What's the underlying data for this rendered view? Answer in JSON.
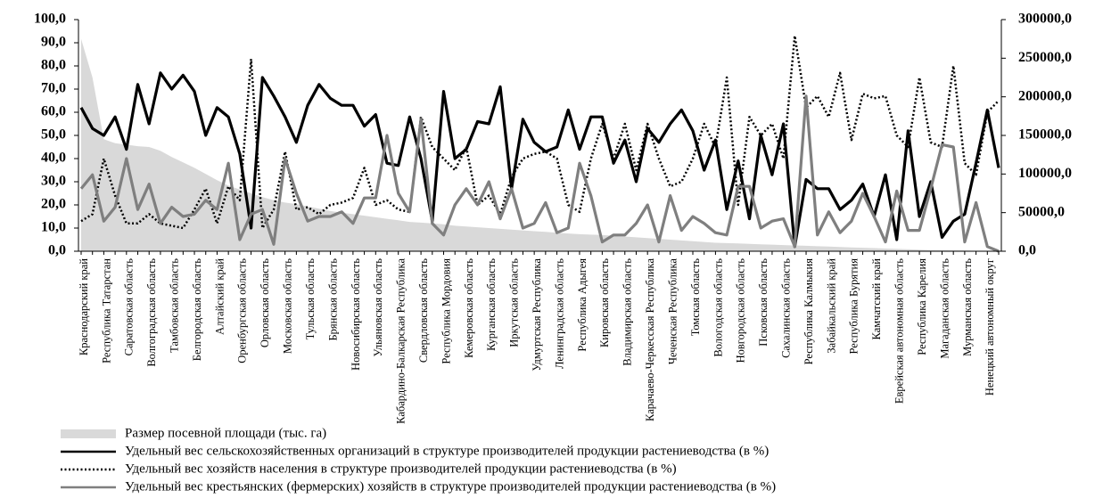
{
  "chart_data": {
    "type": "line",
    "categories": [
      "Краснодарский край",
      null,
      "Республика Татарстан",
      null,
      "Саратовская область",
      null,
      "Волгоградская область",
      null,
      "Тамбовская область",
      null,
      "Белгородская область",
      null,
      "Алтайский край",
      null,
      "Оренбургская область",
      null,
      "Орловская область",
      null,
      "Московская область",
      null,
      "Тульская область",
      null,
      "Брянская область",
      null,
      "Новосибирская область",
      null,
      "Ульяновская область",
      null,
      "Кабардино-Балкарская Республика",
      null,
      "Свердловская область",
      null,
      "Республика Мордовия",
      null,
      "Кемеровская область",
      null,
      "Курганская область",
      null,
      "Иркутская область",
      null,
      "Удмуртская Республика",
      null,
      "Ленинградская область",
      null,
      "Республика Адыгея",
      null,
      "Кировская область",
      null,
      "Владимирская область",
      null,
      "Карачаево-Черкесская Республика",
      null,
      "Чеченская Республика",
      null,
      "Томская область",
      null,
      "Вологодская область",
      null,
      "Новгородская область",
      null,
      "Псковская область",
      null,
      "Сахалинская область",
      null,
      "Республика Калмыкия",
      null,
      "Забайкальский край",
      null,
      "Республика Бурятия",
      null,
      "Камчатский край",
      null,
      "Еврейская автономная область",
      null,
      "Республика Карелия",
      null,
      "Магаданская область",
      null,
      "Мурманская область",
      null,
      "Ненецкий автономный округ",
      null
    ],
    "series": [
      {
        "name": "Размер посевной площади (тыс. га)",
        "style": "area",
        "color": "#d9d9d9",
        "axis": "y2",
        "values": [
          275000,
          225000,
          145000,
          140000,
          138000,
          136000,
          135000,
          130000,
          122000,
          115000,
          108000,
          100000,
          92000,
          85000,
          80000,
          75000,
          70000,
          66000,
          63000,
          61000,
          58000,
          55000,
          52000,
          50000,
          48000,
          46000,
          44000,
          42000,
          40000,
          38000,
          37000,
          36000,
          35000,
          33000,
          32000,
          31000,
          30000,
          29000,
          28000,
          27000,
          26000,
          25000,
          24000,
          23000,
          22000,
          21500,
          21000,
          20000,
          19000,
          18000,
          17000,
          16000,
          15000,
          14000,
          13000,
          12000,
          11000,
          10500,
          10000,
          9500,
          9000,
          8500,
          8000,
          7500,
          7000,
          6500,
          6000,
          5500,
          5000,
          4500,
          4000,
          3500,
          3000,
          2500,
          2000,
          1500,
          1200,
          1000,
          800,
          500,
          300,
          100
        ]
      },
      {
        "name": "Удельный вес сельскохозяйственных организаций в структуре производителей продукции растениеводства (в %)",
        "style": "solid",
        "color": "#000000",
        "values": [
          62,
          53,
          50,
          58,
          44,
          72,
          55,
          77,
          70,
          76,
          69,
          50,
          62,
          58,
          42,
          10,
          75,
          67,
          58,
          47,
          63,
          72,
          66,
          63,
          63,
          54,
          59,
          38,
          37,
          58,
          40,
          13,
          69,
          40,
          44,
          56,
          55,
          71,
          27,
          57,
          47,
          43,
          45,
          61,
          44,
          58,
          58,
          38,
          48,
          30,
          53,
          47,
          55,
          61,
          52,
          35,
          48,
          18,
          39,
          14,
          50,
          33,
          55,
          2,
          31,
          27,
          27,
          18,
          22,
          29,
          15,
          33,
          5,
          52,
          15,
          30,
          6,
          13,
          16,
          38,
          61,
          36
        ]
      },
      {
        "name": "Удельный вес хозяйств населения в структуре производителей продукции растениеводства (в %)",
        "style": "dotted",
        "color": "#000000",
        "values": [
          13,
          16,
          40,
          24,
          12,
          12,
          16,
          12,
          11,
          10,
          18,
          27,
          12,
          28,
          22,
          83,
          10,
          18,
          43,
          18,
          19,
          16,
          20,
          21,
          23,
          36,
          20,
          22,
          18,
          17,
          58,
          45,
          40,
          35,
          45,
          20,
          24,
          16,
          32,
          40,
          42,
          43,
          40,
          20,
          17,
          40,
          55,
          40,
          55,
          35,
          55,
          40,
          28,
          30,
          40,
          55,
          45,
          75,
          20,
          58,
          50,
          55,
          40,
          93,
          62,
          67,
          58,
          77,
          48,
          68,
          66,
          67,
          50,
          45,
          75,
          47,
          45,
          80,
          38,
          33,
          60,
          65
        ]
      },
      {
        "name": "Удельный вес крестьянских (фермерских) хозяйств в структуре производителей продукции растениеводства (в %)",
        "style": "solid",
        "color": "#7f7f7f",
        "values": [
          27,
          33,
          13,
          19,
          40,
          18,
          29,
          12,
          19,
          15,
          16,
          22,
          18,
          38,
          5,
          16,
          18,
          3,
          40,
          25,
          13,
          15,
          15,
          17,
          12,
          23,
          23,
          50,
          25,
          17,
          57,
          12,
          7,
          20,
          27,
          20,
          30,
          14,
          27,
          10,
          12,
          21,
          8,
          10,
          38,
          24,
          4,
          7,
          7,
          12,
          20,
          4,
          24,
          9,
          15,
          12,
          8,
          7,
          28,
          28,
          10,
          13,
          14,
          2,
          67,
          7,
          17,
          8,
          13,
          25,
          15,
          4,
          26,
          9,
          9,
          27,
          46,
          45,
          4,
          21,
          2,
          0
        ]
      }
    ],
    "ylim": [
      0,
      100
    ],
    "yticks": [
      {
        "value": 0,
        "label": "0,0"
      },
      {
        "value": 10,
        "label": "10,0"
      },
      {
        "value": 20,
        "label": "20,0"
      },
      {
        "value": 30,
        "label": "30,0"
      },
      {
        "value": 40,
        "label": "40,0"
      },
      {
        "value": 50,
        "label": "50,0"
      },
      {
        "value": 60,
        "label": "60,0"
      },
      {
        "value": 70,
        "label": "70,0"
      },
      {
        "value": 80,
        "label": "80,0"
      },
      {
        "value": 90,
        "label": "90,0"
      },
      {
        "value": 100,
        "label": "100,0"
      }
    ],
    "y2lim": [
      0,
      300000
    ],
    "y2ticks": [
      {
        "value": 0,
        "label": "0,0"
      },
      {
        "value": 50000,
        "label": "50000,0"
      },
      {
        "value": 100000,
        "label": "100000,0"
      },
      {
        "value": 150000,
        "label": "150000,0"
      },
      {
        "value": 200000,
        "label": "200000,0"
      },
      {
        "value": 250000,
        "label": "250000,0"
      },
      {
        "value": 300000,
        "label": "300000,0"
      }
    ],
    "grid": false,
    "legend": "bottom-left"
  }
}
